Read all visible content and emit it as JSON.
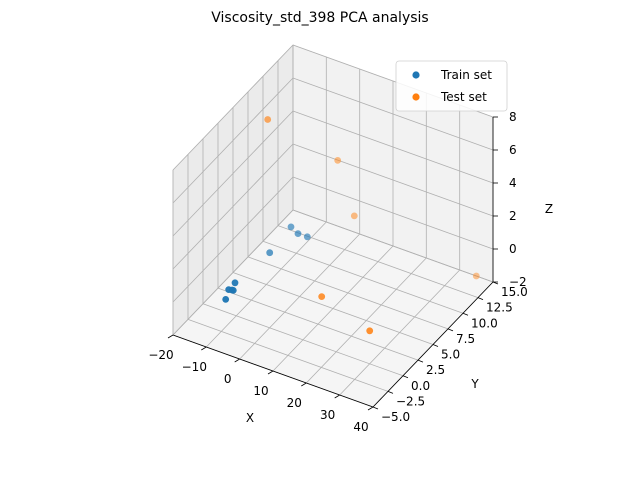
{
  "chart_data": {
    "type": "scatter",
    "projection": "3d",
    "title": "Viscosity_std_398 PCA analysis",
    "xlabel": "X",
    "ylabel": "Y",
    "zlabel": "Z",
    "xlim": [
      -20,
      40
    ],
    "ylim": [
      -5.0,
      15.0
    ],
    "zlim": [
      -2,
      8
    ],
    "xticks": [
      "−20",
      "−10",
      "0",
      "10",
      "20",
      "30",
      "40"
    ],
    "yticks": [
      "−5.0",
      "−2.5",
      "0.0",
      "2.5",
      "5.0",
      "7.5",
      "10.0",
      "12.5",
      "15.0"
    ],
    "zticks": [
      "−2",
      "0",
      "2",
      "4",
      "6",
      "8"
    ],
    "grid": true,
    "legend_position": "upper right",
    "series": [
      {
        "name": "Train set",
        "color": "#1f77b4",
        "points": [
          {
            "x": -8,
            "y": 8,
            "z": 0.5
          },
          {
            "x": -5,
            "y": 7.5,
            "z": 0.5
          },
          {
            "x": -4,
            "y": 8.5,
            "z": 0
          },
          {
            "x": -9,
            "y": 5,
            "z": 0
          },
          {
            "x": -5,
            "y": -3,
            "z": 1.5
          },
          {
            "x": -5.5,
            "y": -3.2,
            "z": 1.1
          },
          {
            "x": -5.5,
            "y": -3,
            "z": 1
          },
          {
            "x": -6,
            "y": -3.5,
            "z": 1.2
          },
          {
            "x": -6,
            "y": -4,
            "z": 0.8
          }
        ]
      },
      {
        "name": "Test set",
        "color": "#ff7f0e",
        "points": [
          {
            "x": -15,
            "y": 8,
            "z": 6.5
          },
          {
            "x": -3,
            "y": 13,
            "z": 3
          },
          {
            "x": 2,
            "y": 13,
            "z": 0
          },
          {
            "x": 12,
            "y": 2,
            "z": 0
          },
          {
            "x": 30,
            "y": 0,
            "z": 0
          },
          {
            "x": 35,
            "y": 15,
            "z": -2
          }
        ]
      }
    ]
  }
}
